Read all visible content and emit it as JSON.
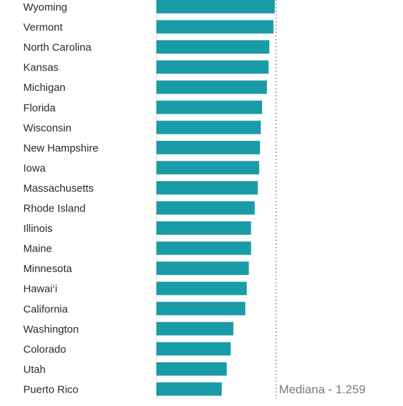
{
  "chart_data": {
    "type": "bar",
    "orientation": "horizontal",
    "categories": [
      "Wyoming",
      "Vermont",
      "North Carolina",
      "Kansas",
      "Michigan",
      "Florida",
      "Wisconsin",
      "New Hampshire",
      "Iowa",
      "Massachusetts",
      "Rhode Island",
      "Illinois",
      "Maine",
      "Minnesota",
      "Hawai‘i",
      "California",
      "Washington",
      "Colorado",
      "Utah",
      "Puerto Rico"
    ],
    "values": [
      1255,
      1242,
      1198,
      1190,
      1172,
      1121,
      1107,
      1099,
      1090,
      1075,
      1043,
      1004,
      1004,
      981,
      958,
      943,
      817,
      789,
      746,
      693
    ],
    "xlim": [
      0,
      1300
    ],
    "grid": false,
    "bar_color": "#1a9ba8",
    "median": {
      "value": 1259,
      "label": "Mediana - 1.259",
      "line_color": "#b0b0b0"
    }
  }
}
